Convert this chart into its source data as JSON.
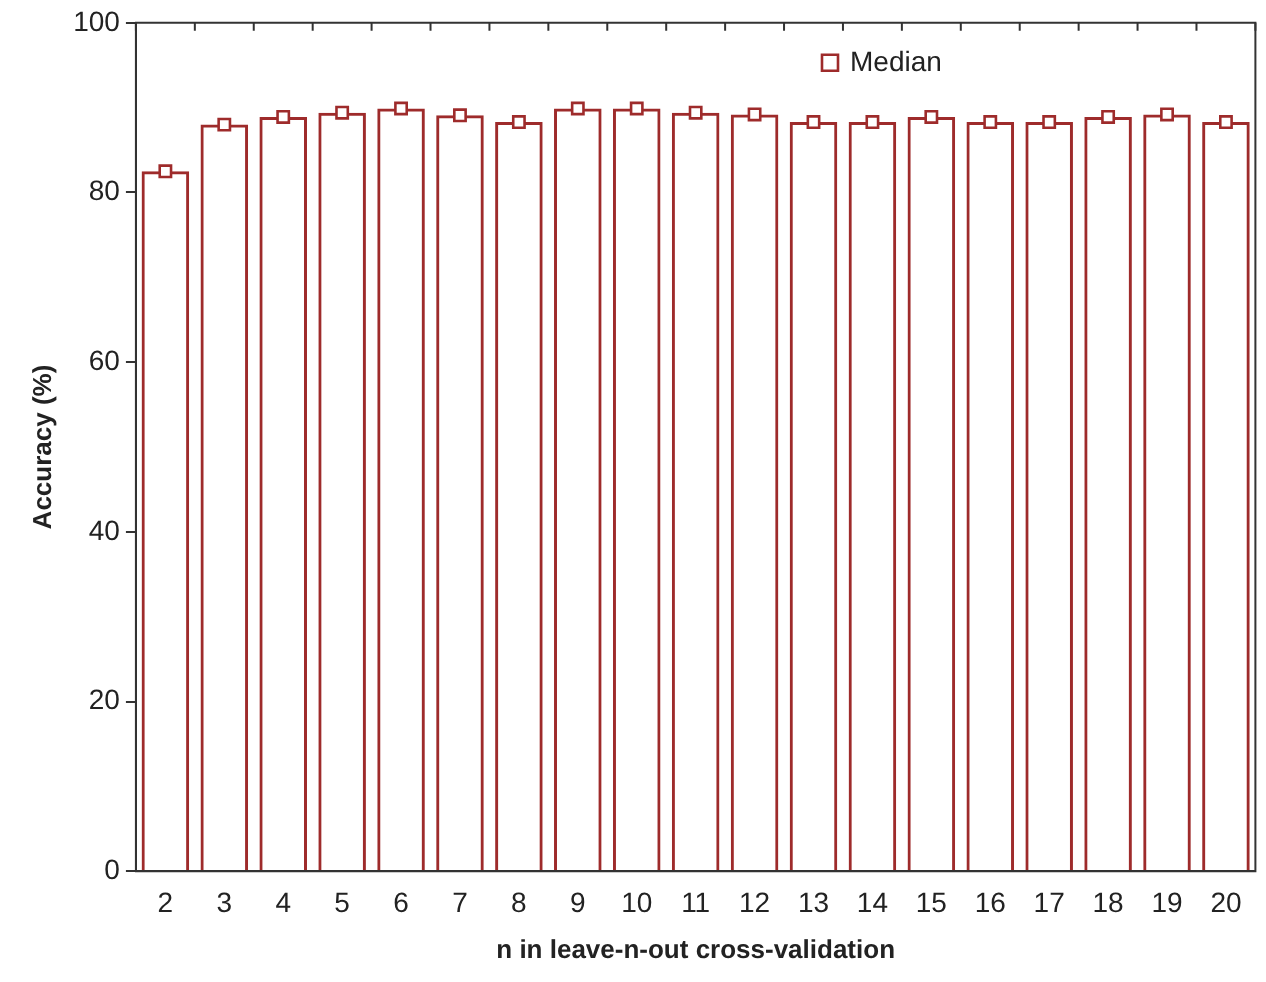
{
  "chart_data": {
    "type": "bar",
    "xlabel": "n in leave-n-out cross-validation",
    "ylabel": "Accuracy (%)",
    "categories": [
      "2",
      "3",
      "4",
      "5",
      "6",
      "7",
      "8",
      "9",
      "10",
      "11",
      "12",
      "13",
      "14",
      "15",
      "16",
      "17",
      "18",
      "19",
      "20"
    ],
    "series": [
      {
        "color": "#9e2b2b",
        "values": [
          82.5,
          88.0,
          88.9,
          89.4,
          89.9,
          89.1,
          88.3,
          89.9,
          89.9,
          89.4,
          89.2,
          88.3,
          88.3,
          88.9,
          88.3,
          88.3,
          88.9,
          89.2,
          88.3
        ]
      },
      {
        "type": "scatter",
        "name": "Median",
        "color": "#9e2b2b",
        "x": [
          "2",
          "3",
          "4",
          "5",
          "6",
          "7",
          "8",
          "9",
          "10",
          "11",
          "12",
          "13",
          "14",
          "15",
          "16",
          "17",
          "18",
          "19",
          "20"
        ],
        "values": [
          82.5,
          88.0,
          88.9,
          89.4,
          89.9,
          89.1,
          88.3,
          89.9,
          89.9,
          89.4,
          89.2,
          88.3,
          88.3,
          88.9,
          88.3,
          88.3,
          88.9,
          89.2,
          88.3
        ]
      }
    ],
    "ylim": [
      0,
      100
    ],
    "yticks": [
      0,
      20,
      40,
      60,
      80,
      100
    ],
    "grid": false,
    "legend": "top",
    "marker": "square"
  }
}
